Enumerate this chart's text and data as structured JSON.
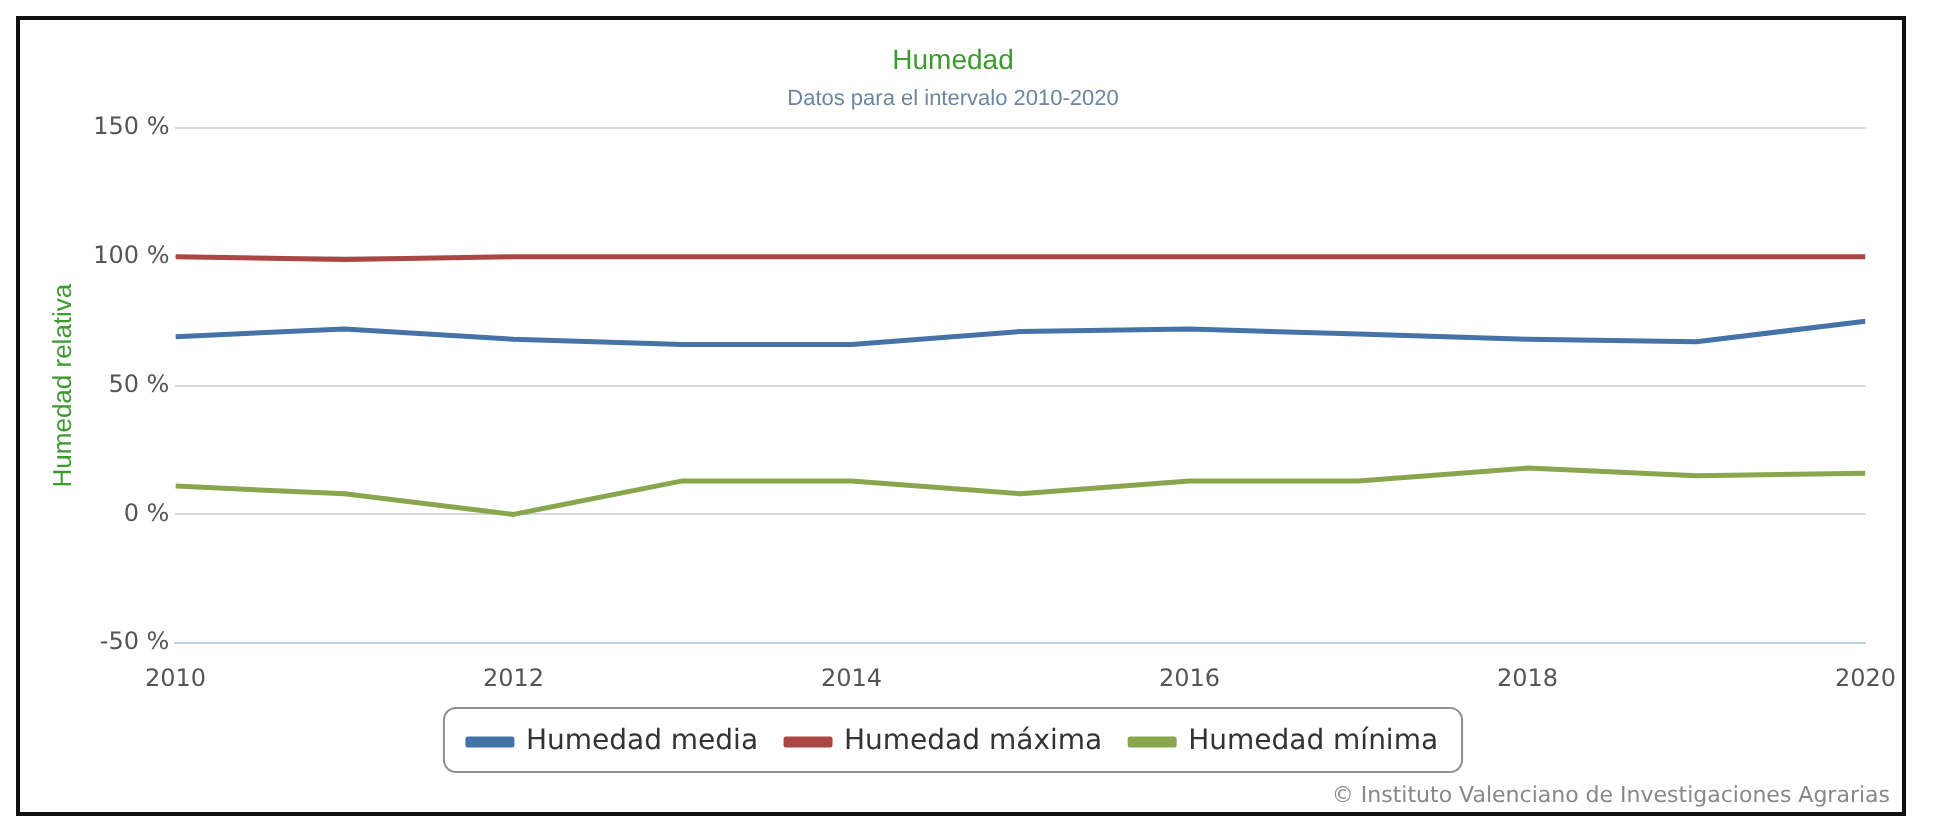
{
  "chart_data": {
    "type": "line",
    "title": "Humedad",
    "subtitle": "Datos para el intervalo 2010-2020",
    "ylabel": "Humedad relativa",
    "x": [
      2010,
      2011,
      2012,
      2013,
      2014,
      2015,
      2016,
      2017,
      2018,
      2019,
      2020
    ],
    "series": [
      {
        "name": "Humedad media",
        "color": "#4572a7",
        "values": [
          69,
          72,
          68,
          66,
          66,
          71,
          72,
          70,
          68,
          67,
          75
        ]
      },
      {
        "name": "Humedad máxima",
        "color": "#aa4643",
        "values": [
          100,
          99,
          100,
          100,
          100,
          100,
          100,
          100,
          100,
          100,
          100
        ]
      },
      {
        "name": "Humedad mínima",
        "color": "#89a54e",
        "values": [
          11,
          8,
          0,
          13,
          13,
          8,
          13,
          13,
          18,
          15,
          16
        ]
      }
    ],
    "xlim": [
      2010,
      2020
    ],
    "xticks": [
      2010,
      2012,
      2014,
      2016,
      2018,
      2020
    ],
    "ylim": [
      -50,
      150
    ],
    "yticks": [
      {
        "value": -50,
        "label": "-50 %"
      },
      {
        "value": 0,
        "label": "0 %"
      },
      {
        "value": 50,
        "label": "50 %"
      },
      {
        "value": 100,
        "label": "100 %"
      },
      {
        "value": 150,
        "label": "150 %"
      }
    ],
    "grid": "y",
    "legend": "bottom",
    "marker": "none",
    "line_style": "solid",
    "annotations": [
      "© Instituto Valenciano de Investigaciones Agrarias"
    ]
  }
}
